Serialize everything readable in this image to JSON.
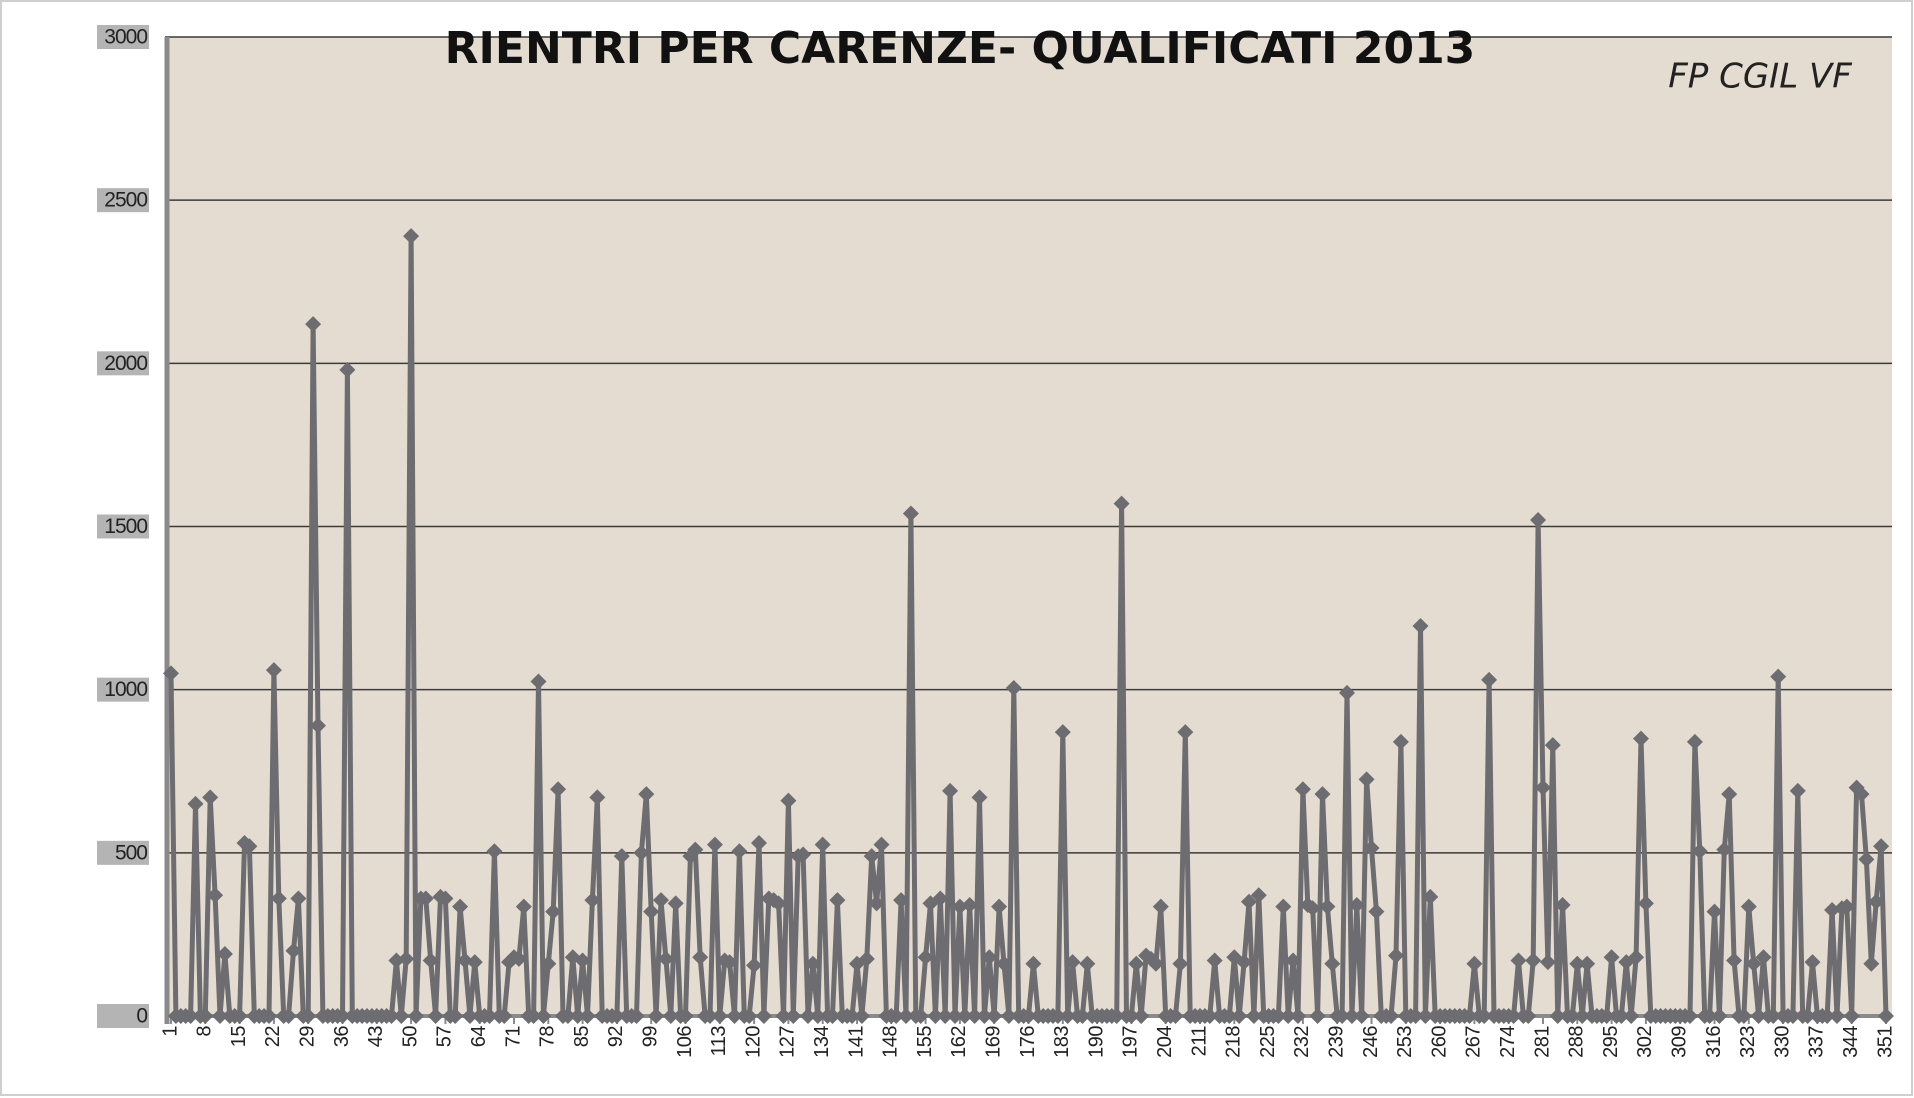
{
  "chart_data": {
    "type": "line",
    "title": "RIENTRI PER CARENZE- QUALIFICATI 2013",
    "annotation": "FP CGIL VF",
    "categories": [
      1,
      null,
      null,
      null,
      null,
      null,
      null,
      8,
      null,
      null,
      null,
      null,
      null,
      null,
      15,
      null,
      null,
      null,
      null,
      null,
      null,
      22,
      null,
      null,
      null,
      null,
      null,
      null,
      29,
      null,
      null,
      null,
      null,
      null,
      null,
      36,
      null,
      null,
      null,
      null,
      null,
      null,
      43,
      null,
      null,
      null,
      null,
      null,
      null,
      50,
      null,
      null,
      null,
      null,
      null,
      null,
      57,
      null,
      null,
      null,
      null,
      null,
      null,
      64,
      null,
      null,
      null,
      null,
      null,
      null,
      71,
      null,
      null,
      null,
      null,
      null,
      null,
      78,
      null,
      null,
      null,
      null,
      null,
      null,
      85,
      null,
      null,
      null,
      null,
      null,
      null,
      92,
      null,
      null,
      null,
      null,
      null,
      null,
      99,
      null,
      null,
      null,
      null,
      null,
      null,
      106,
      null,
      null,
      null,
      null,
      null,
      null,
      113,
      null,
      null,
      null,
      null,
      null,
      null,
      120,
      null,
      null,
      null,
      null,
      null,
      null,
      127,
      null,
      null,
      null,
      null,
      null,
      null,
      134,
      null,
      null,
      null,
      null,
      null,
      null,
      141,
      null,
      null,
      null,
      null,
      null,
      null,
      148,
      null,
      null,
      null,
      null,
      null,
      null,
      155,
      null,
      null,
      null,
      null,
      null,
      null,
      162,
      null,
      null,
      null,
      null,
      null,
      null,
      169,
      null,
      null,
      null,
      null,
      null,
      null,
      176,
      null,
      null,
      null,
      null,
      null,
      null,
      183,
      null,
      null,
      null,
      null,
      null,
      null,
      190,
      null,
      null,
      null,
      null,
      null,
      null,
      197,
      null,
      null,
      null,
      null,
      null,
      null,
      204,
      null,
      null,
      null,
      null,
      null,
      null,
      211,
      null,
      null,
      null,
      null,
      null,
      null,
      218,
      null,
      null,
      null,
      null,
      null,
      null,
      225,
      null,
      null,
      null,
      null,
      null,
      null,
      232,
      null,
      null,
      null,
      null,
      null,
      null,
      239,
      null,
      null,
      null,
      null,
      null,
      null,
      246,
      null,
      null,
      null,
      null,
      null,
      null,
      253,
      null,
      null,
      null,
      null,
      null,
      null,
      260,
      null,
      null,
      null,
      null,
      null,
      null,
      267,
      null,
      null,
      null,
      null,
      null,
      null,
      274,
      null,
      null,
      null,
      null,
      null,
      null,
      281,
      null,
      null,
      null,
      null,
      null,
      null,
      288,
      null,
      null,
      null,
      null,
      null,
      null,
      295,
      null,
      null,
      null,
      null,
      null,
      null,
      302,
      null,
      null,
      null,
      null,
      null,
      null,
      309,
      null,
      null,
      null,
      null,
      null,
      null,
      316,
      null,
      null,
      null,
      null,
      null,
      null,
      323,
      null,
      null,
      null,
      null,
      null,
      null,
      330,
      null,
      null,
      null,
      null,
      null,
      null,
      337,
      null,
      null,
      null,
      null,
      null,
      null,
      344,
      null,
      null,
      null,
      null,
      null,
      null,
      351
    ],
    "values": [
      1050,
      0,
      0,
      0,
      0,
      650,
      0,
      0,
      670,
      370,
      0,
      190,
      0,
      0,
      0,
      530,
      520,
      0,
      0,
      0,
      0,
      1060,
      360,
      0,
      0,
      200,
      360,
      0,
      0,
      2120,
      890,
      0,
      0,
      0,
      0,
      0,
      1980,
      0,
      0,
      0,
      0,
      0,
      0,
      0,
      0,
      0,
      170,
      0,
      175,
      2390,
      0,
      360,
      360,
      170,
      0,
      365,
      360,
      0,
      0,
      335,
      170,
      0,
      165,
      0,
      0,
      0,
      505,
      0,
      0,
      165,
      180,
      175,
      335,
      0,
      0,
      1025,
      0,
      160,
      320,
      695,
      0,
      0,
      180,
      0,
      170,
      0,
      355,
      670,
      0,
      0,
      0,
      0,
      490,
      0,
      0,
      0,
      500,
      680,
      320,
      0,
      355,
      175,
      0,
      345,
      0,
      0,
      490,
      510,
      180,
      0,
      0,
      525,
      0,
      170,
      165,
      0,
      505,
      0,
      0,
      155,
      530,
      0,
      360,
      355,
      345,
      0,
      660,
      0,
      490,
      495,
      0,
      160,
      0,
      525,
      0,
      0,
      355,
      0,
      0,
      0,
      160,
      0,
      175,
      490,
      345,
      525,
      0,
      0,
      0,
      355,
      0,
      1540,
      0,
      0,
      180,
      345,
      0,
      360,
      0,
      690,
      0,
      335,
      0,
      340,
      0,
      670,
      0,
      180,
      0,
      335,
      160,
      0,
      1005,
      0,
      0,
      0,
      160,
      0,
      0,
      0,
      0,
      0,
      870,
      0,
      165,
      0,
      0,
      160,
      0,
      0,
      0,
      0,
      0,
      0,
      1570,
      0,
      0,
      160,
      0,
      185,
      175,
      160,
      335,
      0,
      0,
      0,
      160,
      870,
      0,
      0,
      0,
      0,
      0,
      170,
      0,
      0,
      0,
      180,
      0,
      165,
      350,
      0,
      370,
      0,
      0,
      0,
      0,
      335,
      0,
      170,
      0,
      695,
      340,
      330,
      0,
      680,
      335,
      160,
      0,
      0,
      990,
      0,
      340,
      0,
      725,
      515,
      320,
      0,
      0,
      0,
      185,
      840,
      0,
      0,
      0,
      1195,
      0,
      365,
      0,
      0,
      0,
      0,
      0,
      0,
      0,
      0,
      160,
      0,
      0,
      1030,
      0,
      0,
      0,
      0,
      0,
      170,
      0,
      0,
      170,
      1520,
      700,
      165,
      830,
      0,
      340,
      0,
      0,
      160,
      0,
      160,
      0,
      0,
      0,
      0,
      180,
      0,
      0,
      165,
      0,
      180,
      850,
      345,
      0,
      0,
      0,
      0,
      0,
      0,
      0,
      0,
      0,
      840,
      505,
      0,
      0,
      320,
      0,
      510,
      680,
      170,
      0,
      0,
      335,
      160,
      0,
      180,
      0,
      0,
      1040,
      0,
      0,
      0,
      690,
      0,
      0,
      165,
      0,
      0,
      0,
      325,
      0,
      330,
      335,
      0,
      700,
      680,
      480,
      160,
      350,
      520,
      0
    ],
    "color": "#6d6c70",
    "ylim": [
      0,
      3000
    ],
    "yticks": [
      0,
      500,
      1000,
      1500,
      2000,
      2500,
      3000
    ],
    "grid": true
  }
}
